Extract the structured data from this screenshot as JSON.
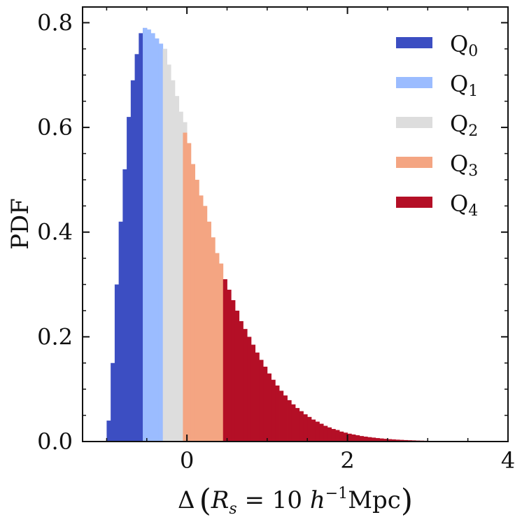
{
  "chart_data": {
    "type": "bar",
    "ylabel": "PDF",
    "xlabel_html": "Δ (R_s = 10 h⁻¹Mpc)",
    "xlim": [
      -1.3,
      4.0
    ],
    "ylim": [
      0.0,
      0.83
    ],
    "xticks": [
      0,
      2,
      4
    ],
    "yticks": [
      0.0,
      0.2,
      0.4,
      0.6,
      0.8
    ],
    "ytick_labels": [
      "0.0",
      "0.2",
      "0.4",
      "0.6",
      "0.8"
    ],
    "bin_width": 0.05,
    "series": [
      {
        "name": "Q0",
        "color": "#3c4ec2",
        "x": [
          -1.0,
          -0.95,
          -0.9,
          -0.85,
          -0.8,
          -0.75,
          -0.7,
          -0.65,
          -0.6,
          -0.55
        ],
        "values": [
          0.04,
          0.15,
          0.3,
          0.42,
          0.52,
          0.62,
          0.69,
          0.74,
          0.78,
          0.79
        ]
      },
      {
        "name": "Q1",
        "color": "#9bbcff",
        "x": [
          -0.55,
          -0.5,
          -0.45,
          -0.4,
          -0.35,
          -0.3
        ],
        "values": [
          0.79,
          0.787,
          0.78,
          0.77,
          0.76,
          0.75
        ]
      },
      {
        "name": "Q2",
        "color": "#dddddd",
        "x": [
          -0.3,
          -0.25,
          -0.2,
          -0.15,
          -0.1,
          -0.05
        ],
        "values": [
          0.75,
          0.72,
          0.69,
          0.66,
          0.63,
          0.61
        ]
      },
      {
        "name": "Q3",
        "color": "#f4a582",
        "x": [
          -0.05,
          0.0,
          0.05,
          0.1,
          0.15,
          0.2,
          0.25,
          0.3,
          0.35,
          0.4
        ],
        "values": [
          0.59,
          0.57,
          0.53,
          0.5,
          0.47,
          0.45,
          0.42,
          0.39,
          0.36,
          0.34
        ]
      },
      {
        "name": "Q4",
        "color": "#b40f26",
        "x": [
          0.45,
          0.5,
          0.55,
          0.6,
          0.65,
          0.7,
          0.75,
          0.8,
          0.85,
          0.9,
          0.95,
          1.0,
          1.05,
          1.1,
          1.15,
          1.2,
          1.25,
          1.3,
          1.35,
          1.4,
          1.45,
          1.5,
          1.55,
          1.6,
          1.65,
          1.7,
          1.75,
          1.8,
          1.85,
          1.9,
          1.95,
          2.0,
          2.05,
          2.1,
          2.15,
          2.2,
          2.25,
          2.3,
          2.35,
          2.4,
          2.45,
          2.5,
          2.55,
          2.6,
          2.65,
          2.7,
          2.75,
          2.8,
          2.85,
          2.9,
          2.95,
          3.0,
          3.05,
          3.1,
          3.15,
          3.2,
          3.25,
          3.3,
          3.35,
          3.4,
          3.45,
          3.5,
          3.55,
          3.6,
          3.65,
          3.7,
          3.75,
          3.8,
          3.85,
          3.9,
          3.95
        ],
        "values": [
          0.31,
          0.29,
          0.27,
          0.25,
          0.23,
          0.215,
          0.2,
          0.185,
          0.17,
          0.156,
          0.143,
          0.13,
          0.118,
          0.107,
          0.097,
          0.088,
          0.079,
          0.071,
          0.064,
          0.058,
          0.052,
          0.047,
          0.042,
          0.038,
          0.034,
          0.03,
          0.027,
          0.024,
          0.022,
          0.019,
          0.017,
          0.015,
          0.0135,
          0.012,
          0.0105,
          0.0094,
          0.0084,
          0.0075,
          0.0066,
          0.0059,
          0.0052,
          0.0046,
          0.0041,
          0.0036,
          0.0032,
          0.0028,
          0.0025,
          0.0022,
          0.0019,
          0.0017,
          0.0015,
          0.0013,
          0.0012,
          0.001,
          0.0009,
          0.0008,
          0.0007,
          0.0006,
          0.0005,
          0.0005,
          0.0004,
          0.0004,
          0.0003,
          0.0003,
          0.0003,
          0.0002,
          0.0002,
          0.0002,
          0.0002,
          0.0001,
          0.0001
        ]
      }
    ],
    "legend": {
      "placement": "top-right",
      "entries": [
        {
          "label": "Q",
          "sub": "0",
          "color": "#3c4ec2"
        },
        {
          "label": "Q",
          "sub": "1",
          "color": "#9bbcff"
        },
        {
          "label": "Q",
          "sub": "2",
          "color": "#dddddd"
        },
        {
          "label": "Q",
          "sub": "3",
          "color": "#f4a582"
        },
        {
          "label": "Q",
          "sub": "4",
          "color": "#b40f26"
        }
      ]
    },
    "grid": false
  }
}
